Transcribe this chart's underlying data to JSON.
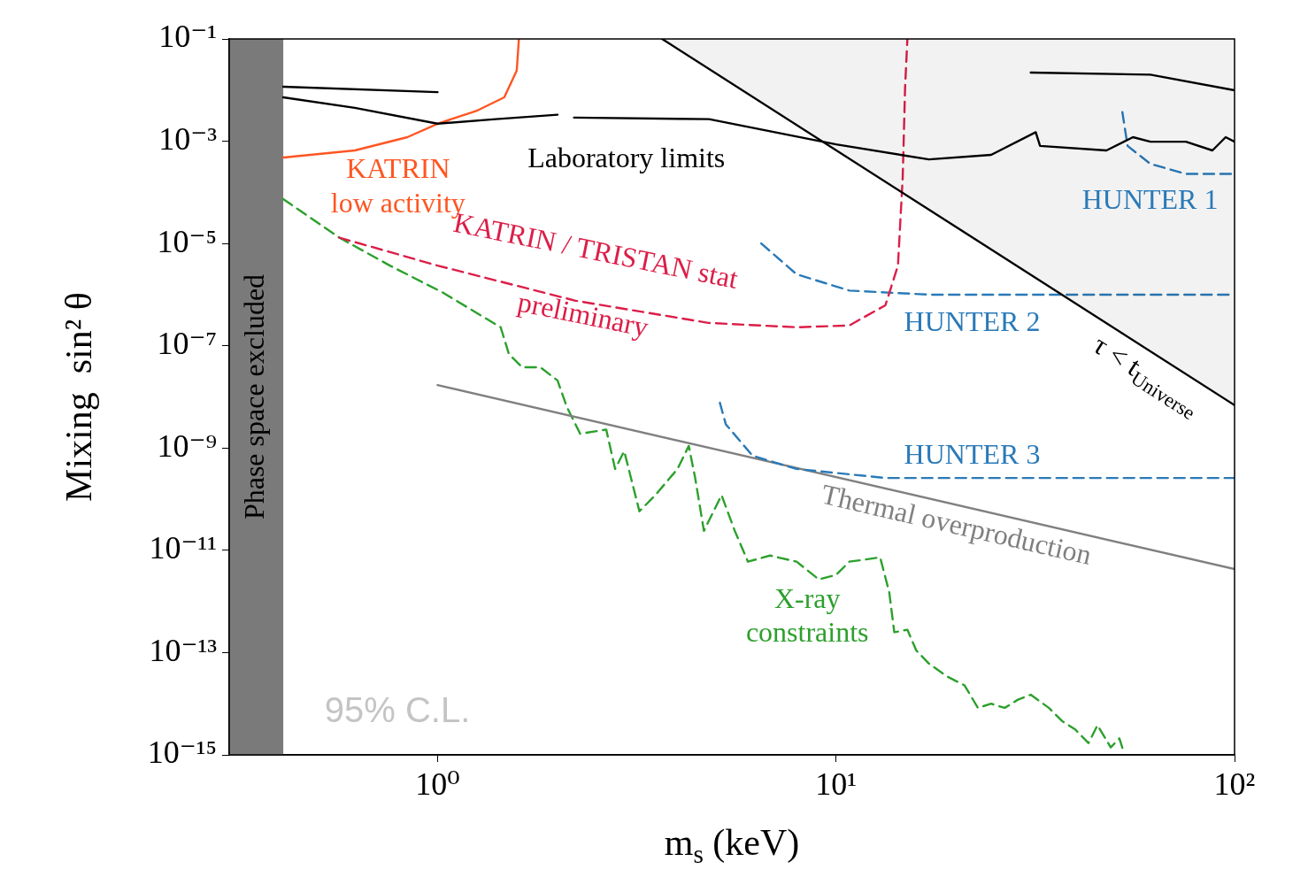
{
  "chart_data": {
    "type": "line",
    "log": "xy",
    "xlabel": "m$_{s}$ (keV)",
    "ylabel": "Mixing  sin² θ",
    "xlim": [
      0.3,
      100
    ],
    "ylim": [
      1e-15,
      0.1
    ],
    "xticks": [
      {
        "value": 1,
        "label": "10⁰"
      },
      {
        "value": 10,
        "label": "10¹"
      },
      {
        "value": 100,
        "label": "10²"
      }
    ],
    "yticks": [
      {
        "value": 1e-15,
        "label": "10⁻¹⁵"
      },
      {
        "value": 1e-13,
        "label": "10⁻¹³"
      },
      {
        "value": 1e-11,
        "label": "10⁻¹¹"
      },
      {
        "value": 1e-09,
        "label": "10⁻⁹"
      },
      {
        "value": 1e-07,
        "label": "10⁻⁷"
      },
      {
        "value": 1e-05,
        "label": "10⁻⁵"
      },
      {
        "value": 0.001,
        "label": "10⁻³"
      },
      {
        "value": 0.1,
        "label": "10⁻¹"
      }
    ],
    "bands": [
      {
        "axis": "x",
        "from": 0.3,
        "to": 0.41,
        "label": "Phase space excluded",
        "color": "#7a7a7a"
      }
    ],
    "series": [
      {
        "type": "area",
        "name": "τ < t$_{Universe}$",
        "color": "#000000",
        "x": [
          3.66,
          100
        ],
        "values": [
          0.1,
          6.9e-09
        ]
      },
      {
        "color": "#000000",
        "x": [
          0.41,
          1.0
        ],
        "values": [
          0.0116,
          0.0091
        ]
      },
      {
        "color": "#000000",
        "x": [
          0.41,
          0.62,
          1,
          1.4,
          2.0
        ],
        "values": [
          0.0072,
          0.0045,
          0.0022,
          0.0027,
          0.0033
        ]
      },
      {
        "name": "Laboratory limits",
        "color": "#000000",
        "x": [
          2.2,
          4.8,
          10,
          17.1,
          24.5,
          31.7,
          32.5,
          47.7,
          55.6,
          61.5,
          75.5,
          88,
          95,
          100
        ],
        "values": [
          0.0029,
          0.0027,
          0.00087,
          0.00044,
          0.00054,
          0.0015,
          0.00081,
          0.00066,
          0.0012,
          0.00098,
          0.00098,
          0.00066,
          0.0012,
          0.00098
        ]
      },
      {
        "color": "#000000",
        "x": [
          30.8,
          61.5,
          100
        ],
        "values": [
          0.022,
          0.02,
          0.0099
        ]
      },
      {
        "name": "KATRIN\nlow activity",
        "color": "#ff5522",
        "x": [
          0.41,
          0.62,
          0.84,
          1,
          1.26,
          1.47,
          1.58,
          1.6
        ],
        "values": [
          0.00048,
          0.00066,
          0.0012,
          0.0022,
          0.004,
          0.0072,
          0.024,
          0.1
        ]
      },
      {
        "name": "KATRIN / TRISTAN stat\npreliminary",
        "color": "#dc1e48",
        "line_style": "dashed",
        "x": [
          0.567,
          1,
          2.22,
          4.78,
          7.96,
          10.8,
          13.3,
          14.3,
          14.7,
          14.9,
          15.1
        ],
        "values": [
          1.3e-05,
          3.7e-06,
          7.6e-07,
          2.8e-07,
          2.3e-07,
          2.5e-07,
          6.2e-07,
          3.7e-06,
          0.0002,
          0.011,
          0.1
        ]
      },
      {
        "name": "HUNTER 1",
        "color": "#2a7ab8",
        "line_style": "dashed",
        "x": [
          52.3,
          53.9,
          61.5,
          75.5,
          100
        ],
        "values": [
          0.0037,
          0.00081,
          0.00036,
          0.00023,
          0.00023
        ]
      },
      {
        "name": "HUNTER 2",
        "color": "#2a7ab8",
        "line_style": "dashed",
        "x": [
          6.49,
          7.96,
          10.8,
          17.1,
          100
        ],
        "values": [
          1e-05,
          2.5e-06,
          1.2e-06,
          1e-06,
          1e-06
        ]
      },
      {
        "name": "HUNTER 3",
        "color": "#2a7ab8",
        "line_style": "dashed",
        "x": [
          5.11,
          5.29,
          6.17,
          7.96,
          13.3,
          100
        ],
        "values": [
          7.7e-09,
          2.9e-09,
          7.1e-10,
          3.9e-10,
          2.6e-10,
          2.6e-10
        ]
      },
      {
        "name": "Thermal overproduction",
        "color": "#808080",
        "x": [
          1,
          100
        ],
        "values": [
          1.7e-08,
          4.3e-12
        ]
      },
      {
        "name": "X-ray\nconstraints",
        "color": "#2ca02c",
        "line_style": "dashed",
        "x": [
          0.41,
          0.567,
          0.759,
          1.03,
          1.44,
          1.51,
          1.63,
          1.81,
          2.0,
          2.11,
          2.28,
          2.65,
          2.79,
          2.94,
          3.21,
          3.52,
          4.0,
          4.27,
          4.43,
          4.66,
          5.16,
          5.57,
          6.01,
          6.83,
          7.96,
          9.05,
          10,
          10.8,
          12.0,
          12.9,
          13.6,
          14.0,
          15.1,
          15.9,
          17.1,
          19.0,
          21.0,
          22.7,
          24.5,
          26.5,
          28.6,
          30.8,
          34.2,
          36.9,
          39.9,
          43.0,
          45.3,
          48.9,
          51.4,
          52.8
        ],
        "values": [
          7.4e-05,
          1.3e-05,
          3.7e-06,
          1.1e-06,
          2.3e-07,
          6.9e-08,
          3.8e-08,
          3.8e-08,
          2.1e-08,
          6.4e-09,
          1.9e-09,
          2.3e-09,
          3.9e-10,
          8.7e-10,
          5.8e-11,
          1.2e-10,
          3.9e-10,
          1.1e-09,
          2.6e-10,
          2.4e-11,
          1.2e-10,
          2.4e-11,
          6e-12,
          7.9e-12,
          6e-12,
          2.7e-12,
          3.3e-12,
          6e-12,
          6.7e-12,
          7.3e-12,
          1.5e-12,
          2.5e-13,
          2.8e-13,
          1.1e-13,
          6.1e-14,
          3.4e-14,
          2.3e-14,
          8.3e-15,
          1e-14,
          8.3e-15,
          1.2e-14,
          1.5e-14,
          8.3e-15,
          4.6e-15,
          3.1e-15,
          1.7e-15,
          3.8e-15,
          1.4e-15,
          2.1e-15,
          1.1e-15
        ]
      }
    ],
    "annotations": [
      "95% C.L."
    ]
  }
}
